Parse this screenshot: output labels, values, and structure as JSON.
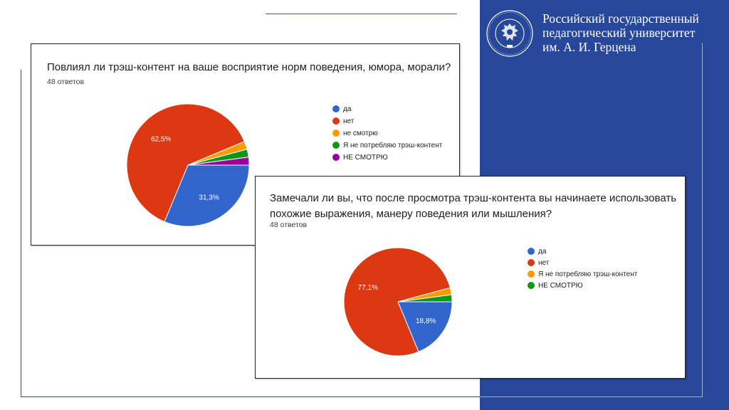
{
  "university": {
    "name_lines": [
      "Российский государственный",
      "педагогический университет",
      "им. А. И. Герцена"
    ]
  },
  "chart_data": [
    {
      "type": "pie",
      "title": "Повлиял ли трэш-контент на ваше восприятие норм поведения, юмора, морали?",
      "subtitle": "48 ответов",
      "categories": [
        "да",
        "нет",
        "не смотрю",
        "Я не потребляю трэш-контент",
        "НЕ СМОТРЮ"
      ],
      "values": [
        31.3,
        62.5,
        2.1,
        2.1,
        2.1
      ],
      "data_labels": [
        "31,3%",
        "62,5%",
        "",
        "",
        ""
      ],
      "colors": [
        "#3366cc",
        "#dc3912",
        "#ff9900",
        "#109618",
        "#990099"
      ],
      "legend_position": "right"
    },
    {
      "type": "pie",
      "title": "Замечали ли вы, что после просмотра трэш-контента вы начинаете использовать похожие выражения, манеру поведения или мышления?",
      "subtitle": "48 ответов",
      "categories": [
        "да",
        "нет",
        "Я не потребляю трэш-контент",
        "НЕ СМОТРЮ"
      ],
      "values": [
        18.8,
        77.1,
        2.1,
        2.1
      ],
      "data_labels": [
        "18,8%",
        "77,1%",
        "",
        ""
      ],
      "colors": [
        "#3366cc",
        "#dc3912",
        "#ff9900",
        "#109618"
      ],
      "legend_position": "right"
    }
  ]
}
